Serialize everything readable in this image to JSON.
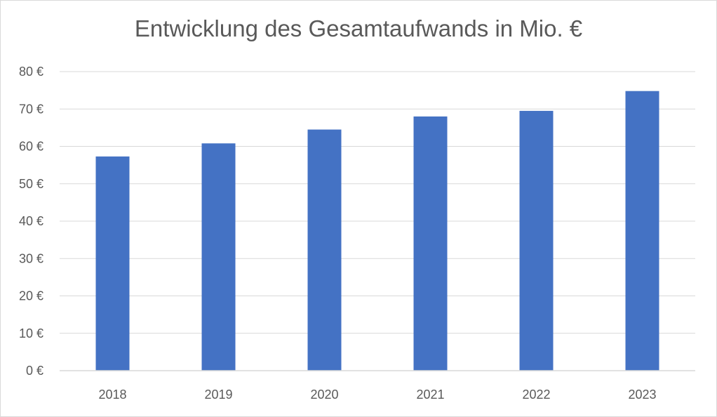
{
  "chart_data": {
    "type": "bar",
    "title": "Entwicklung des Gesamtaufwands in Mio. €",
    "xlabel": "",
    "ylabel": "",
    "categories": [
      "2018",
      "2019",
      "2020",
      "2021",
      "2022",
      "2023"
    ],
    "series": [
      {
        "values": [
          57.3,
          60.8,
          64.5,
          68.0,
          69.5,
          74.8
        ]
      }
    ],
    "ylim": [
      0,
      80
    ],
    "ytick_values": [
      0,
      10,
      20,
      30,
      40,
      50,
      60,
      70,
      80
    ],
    "ytick_labels": [
      "0 €",
      "10 €",
      "20 €",
      "30 €",
      "40 €",
      "50 €",
      "60 €",
      "70 €",
      "80 €"
    ],
    "grid": true,
    "legend": "none",
    "bar_color": "#4472c4",
    "grid_color": "#d9d9d9"
  }
}
